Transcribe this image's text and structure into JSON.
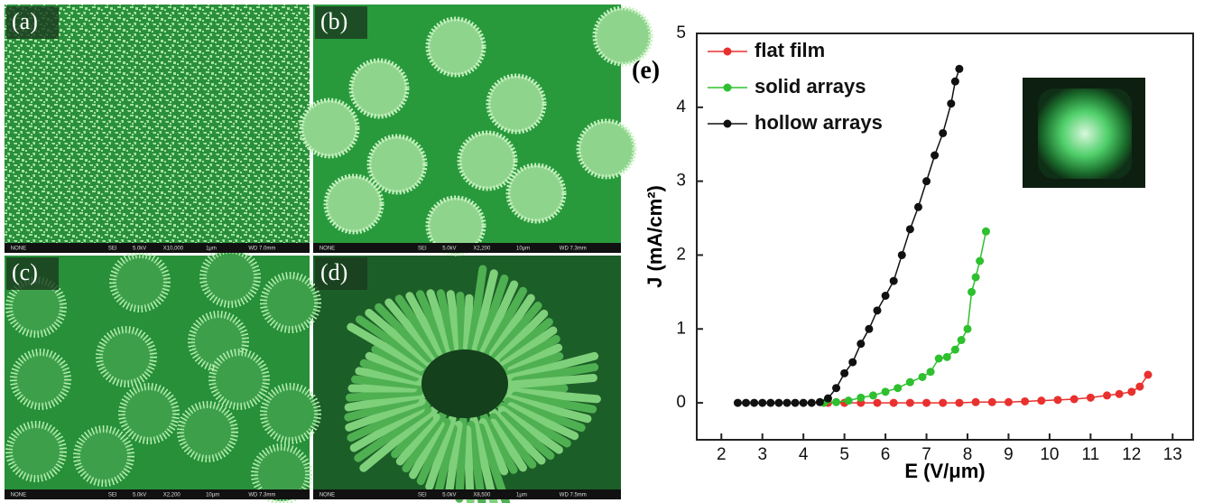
{
  "panels": [
    {
      "label": "(a)",
      "info": [
        "NONE",
        "SEI",
        "5.0kV",
        "X10,000",
        "1μm",
        "WD 7.0mm"
      ]
    },
    {
      "label": "(b)",
      "info": [
        "NONE",
        "SEI",
        "5.0kV",
        "X2,200",
        "10μm",
        "WD 7.3mm"
      ]
    },
    {
      "label": "(c)",
      "info": [
        "NONE",
        "SEI",
        "5.0kV",
        "X2,200",
        "10μm",
        "WD 7.3mm"
      ]
    },
    {
      "label": "(d)",
      "info": [
        "NONE",
        "SEI",
        "5.0kV",
        "X8,500",
        "1μm",
        "WD 7.5mm"
      ]
    }
  ],
  "chart_data": {
    "type": "line",
    "annotation": "(e)",
    "x_label": "E (V/μm)",
    "y_label": "J (mA/cm²)",
    "xlim": [
      1.4,
      13.5
    ],
    "ylim": [
      -0.5,
      5
    ],
    "xticks": [
      2,
      3,
      4,
      5,
      6,
      7,
      8,
      9,
      10,
      11,
      12,
      13
    ],
    "yticks": [
      0,
      1,
      2,
      3,
      4,
      5
    ],
    "legend": "upper left",
    "series": [
      {
        "name": "flat film",
        "color": "#e8312f",
        "x": [
          4.6,
          5.0,
          5.4,
          5.8,
          6.2,
          6.6,
          7.0,
          7.4,
          7.8,
          8.2,
          8.6,
          9.0,
          9.4,
          9.8,
          10.2,
          10.6,
          11.0,
          11.4,
          11.7,
          12.0,
          12.2,
          12.4
        ],
        "values": [
          0,
          0,
          0,
          0,
          0,
          0,
          0,
          0,
          0,
          0.01,
          0.01,
          0.01,
          0.02,
          0.03,
          0.04,
          0.05,
          0.07,
          0.1,
          0.12,
          0.15,
          0.22,
          0.38
        ]
      },
      {
        "name": "solid arrays",
        "color": "#2ec02e",
        "x": [
          4.5,
          4.8,
          5.1,
          5.4,
          5.7,
          6.0,
          6.3,
          6.6,
          6.9,
          7.1,
          7.3,
          7.5,
          7.7,
          7.85,
          8.0,
          8.1,
          8.2,
          8.3,
          8.45
        ],
        "values": [
          0,
          0.01,
          0.03,
          0.07,
          0.1,
          0.15,
          0.2,
          0.28,
          0.35,
          0.42,
          0.6,
          0.62,
          0.72,
          0.85,
          1.0,
          1.5,
          1.7,
          1.92,
          2.32
        ]
      },
      {
        "name": "hollow arrays",
        "color": "#111111",
        "x": [
          2.4,
          2.6,
          2.8,
          3.0,
          3.2,
          3.4,
          3.6,
          3.8,
          4.0,
          4.2,
          4.4,
          4.6,
          4.8,
          5.0,
          5.2,
          5.4,
          5.6,
          5.8,
          6.0,
          6.2,
          6.4,
          6.6,
          6.8,
          7.0,
          7.2,
          7.4,
          7.6,
          7.7,
          7.8
        ],
        "values": [
          0,
          0,
          0,
          0,
          0,
          0,
          0,
          0,
          0,
          0,
          0.01,
          0.06,
          0.2,
          0.4,
          0.55,
          0.8,
          1.0,
          1.25,
          1.45,
          1.65,
          2.0,
          2.35,
          2.65,
          3.0,
          3.35,
          3.65,
          4.05,
          4.35,
          4.52
        ]
      }
    ]
  }
}
